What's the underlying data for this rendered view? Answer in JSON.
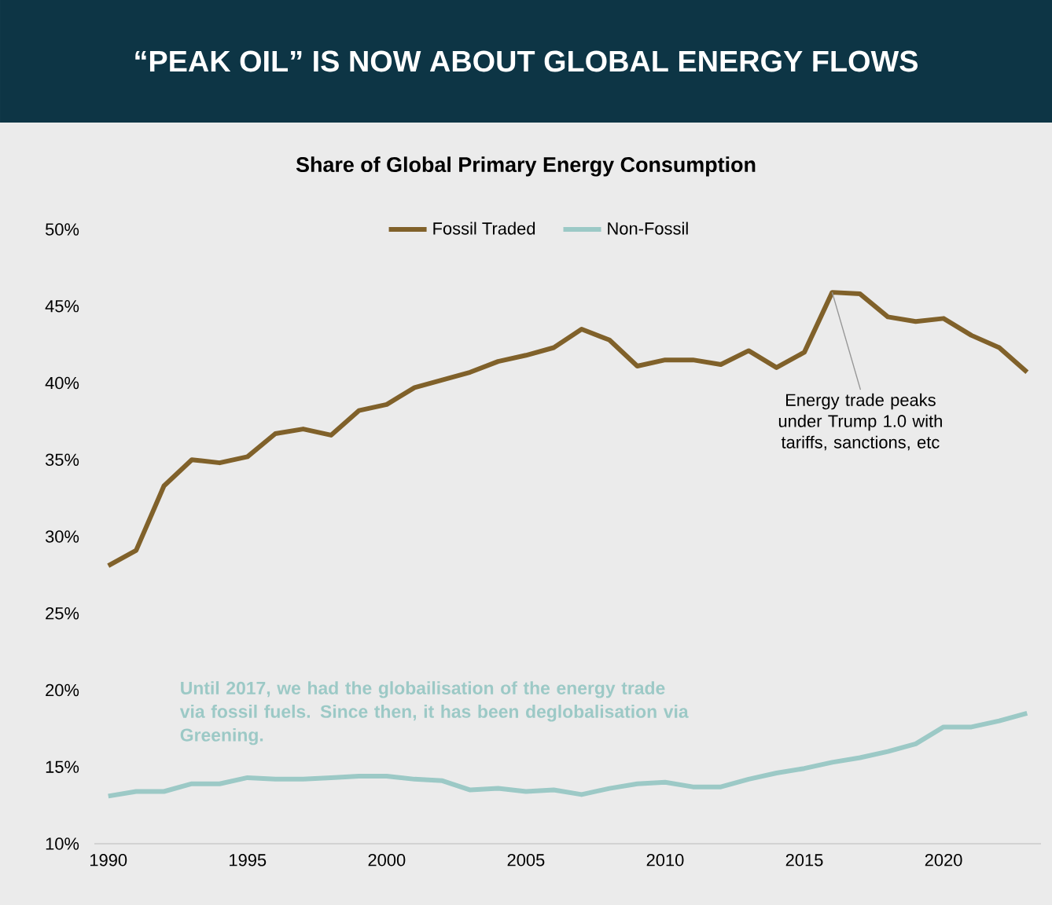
{
  "chart_data": {
    "type": "line",
    "title": "“PEAK OIL” IS NOW ABOUT GLOBAL ENERGY FLOWS",
    "subtitle": "Share of Global Primary Energy Consumption",
    "x": [
      1990,
      1991,
      1992,
      1993,
      1994,
      1995,
      1996,
      1997,
      1998,
      1999,
      2000,
      2001,
      2002,
      2003,
      2004,
      2005,
      2006,
      2007,
      2008,
      2009,
      2010,
      2011,
      2012,
      2013,
      2014,
      2015,
      2016,
      2017,
      2018,
      2019,
      2020,
      2021,
      2022,
      2023
    ],
    "series": [
      {
        "name": "Fossil Traded",
        "color": "#80612a",
        "values": [
          28.1,
          29.1,
          33.3,
          35.0,
          34.8,
          35.2,
          36.7,
          37.0,
          36.6,
          38.2,
          38.6,
          39.7,
          40.2,
          40.7,
          41.4,
          41.8,
          42.3,
          43.5,
          42.8,
          41.1,
          41.5,
          41.5,
          41.2,
          42.1,
          41.0,
          42.0,
          45.9,
          45.8,
          44.3,
          44.0,
          44.2,
          43.1,
          42.3,
          40.7
        ]
      },
      {
        "name": "Non-Fossil",
        "color": "#9cc9c6",
        "values": [
          13.1,
          13.4,
          13.4,
          13.9,
          13.9,
          14.3,
          14.2,
          14.2,
          14.3,
          14.4,
          14.4,
          14.2,
          14.1,
          13.5,
          13.6,
          13.4,
          13.5,
          13.2,
          13.6,
          13.9,
          14.0,
          13.7,
          13.7,
          14.2,
          14.6,
          14.9,
          15.3,
          15.6,
          16.0,
          16.5,
          17.6,
          17.6,
          18.0,
          18.5
        ]
      }
    ],
    "xlim": [
      1989.5,
      2023.5
    ],
    "xticks": [
      1990,
      1995,
      2000,
      2005,
      2010,
      2015,
      2020
    ],
    "ylim": [
      10,
      50
    ],
    "yticks": [
      {
        "value": 10,
        "label": "10%"
      },
      {
        "value": 15,
        "label": "15%"
      },
      {
        "value": 20,
        "label": "20%"
      },
      {
        "value": 25,
        "label": "25%"
      },
      {
        "value": 30,
        "label": "30%"
      },
      {
        "value": 35,
        "label": "35%"
      },
      {
        "value": 40,
        "label": "40%"
      },
      {
        "value": 45,
        "label": "45%"
      },
      {
        "value": 50,
        "label": "50%"
      }
    ],
    "annotations": [
      {
        "text": "Energy trade peaks under Trump 1.0 with tariffs, sanctions, etc",
        "x": 2016,
        "y": 45.9
      },
      "Until 2017, we had the globailisation of the energy trade via fossil fuels. Since then, it has been deglobalisation via Greening."
    ],
    "legend": "top",
    "grid": false,
    "marker": "none",
    "line_style": "solid"
  }
}
